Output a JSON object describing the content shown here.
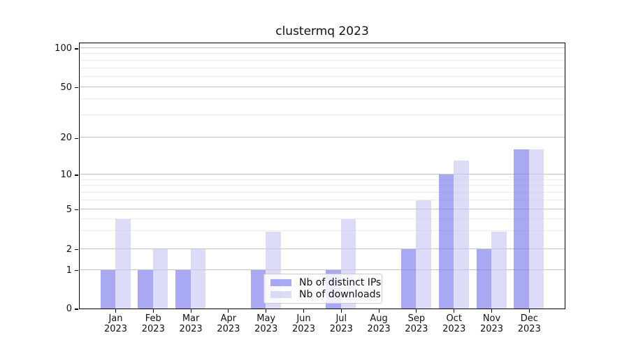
{
  "chart_data": {
    "type": "bar",
    "title": "clustermq 2023",
    "categories": [
      "Jan",
      "Feb",
      "Mar",
      "Apr",
      "May",
      "Jun",
      "Jul",
      "Aug",
      "Sep",
      "Oct",
      "Nov",
      "Dec"
    ],
    "x_tick_year": "2023",
    "series": [
      {
        "name": "Nb of distinct IPs",
        "color": "#7a7aed",
        "alpha": 0.65,
        "values": [
          1,
          1,
          1,
          0,
          1,
          0,
          1,
          0,
          2,
          10,
          2,
          16
        ]
      },
      {
        "name": "Nb of downloads",
        "color": "#c9c9f4",
        "alpha": 0.65,
        "values": [
          4,
          2,
          2,
          0,
          3,
          0,
          4,
          0,
          6,
          13,
          3,
          16
        ]
      }
    ],
    "y_ticks": [
      0,
      1,
      2,
      5,
      10,
      20,
      50,
      100
    ],
    "y_minor_gridlines": [
      3,
      4,
      6,
      7,
      8,
      9,
      30,
      40,
      60,
      70,
      80,
      90
    ],
    "y_scale": "log above 1, linear between 0 and 1 (symlog-like)",
    "ylim": [
      0,
      115
    ],
    "grid": "horizontal",
    "legend_position": "lower center",
    "colors": {
      "major_grid": "#c3c3c3",
      "minor_grid": "#ebebeb",
      "axis": "#000000",
      "text": "#111111",
      "legend_border": "#cccccc"
    }
  }
}
